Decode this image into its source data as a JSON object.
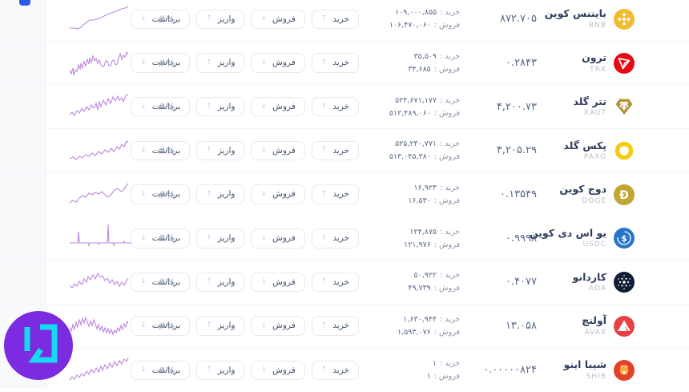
{
  "page": {
    "bg": "#ffffff",
    "spark_color": "#bd87e0",
    "logo": {
      "bg": "#7b2be0",
      "glyph": "#17d9f0"
    }
  },
  "table": {
    "percent_placeholder": "#%",
    "buy_label": "خرید :",
    "sell_label": "فروش :",
    "buttons": {
      "buy": "خرید",
      "sell": "فروش",
      "deposit": "واریز",
      "withdraw": "برداشت"
    },
    "icons": {
      "arrow_up": "↑",
      "arrow_down": "↓"
    },
    "rows": [
      {
        "name": "بایننس کوین",
        "ticker": "BNB",
        "price": "۸۷۲.۷۰۵",
        "buy": "۱۰۹,۰۰۰,۸۵۵",
        "sell": "۱۰۶,۴۷۰,۰۶۰",
        "icon": "bnb",
        "icon_colors": {
          "bg": "#F3BA2F",
          "fg": "#ffffff"
        },
        "spark": "1,31 7,31 11,32 15,30 18,27 22,24 26,21 30,21 34,20 38,19 44,16 50,13 56,11 62,9 66,7 70,6 74,4"
      },
      {
        "name": "ترون",
        "ticker": "TRX",
        "price": "۰.۲۸۴۳",
        "buy": "۳۵,۵۰۹",
        "sell": "۳۴,۶۸۵",
        "icon": "trx",
        "icon_colors": {
          "bg": "#e50914",
          "fg": "#ffffff"
        },
        "spark": "1,28 3,33 5,26 6,35 8,28 10,30 12,22 14,27 15,20 17,26 19,17 21,24 23,15 25,21 26,13 28,19 30,11 32,17 34,14 36,20 38,16 40,22 42,24 44,23 46,17 48,17 50,23 52,23 54,17 56,16 58,22 60,21 62,14 64,8 66,15 68,10 70,12 72,6 74,9"
      },
      {
        "name": "تتر گلد",
        "ticker": "XAUT",
        "price": "۴,۲۰۰.۷۳",
        "buy": "۵۲۴,۶۷۱,۱۷۷",
        "sell": "۵۱۲,۴۸۹,۰۶۰",
        "icon": "xaut",
        "icon_colors": {
          "bg": "#b59341",
          "fg": "#ffffff"
        },
        "spark": "1,30 4,27 7,31 10,25 13,28 16,22 19,26 22,20 25,24 28,18 31,22 34,16 36,24 38,14 40,20 43,12 46,18 49,10 52,16 55,8 58,13 61,7 63,12 66,9 68,14 71,6 74,5"
      },
      {
        "name": "پکس گلد",
        "ticker": "PAXG",
        "price": "۴,۲۰۵.۲۹",
        "buy": "۵۲۵,۲۴۰,۷۷۱",
        "sell": "۵۱۳,۰۴۵,۳۸۰",
        "icon": "paxg",
        "icon_colors": {
          "bg": "#ffffff",
          "fg": "#f2cd12"
        },
        "spark": "1,30 5,28 9,31 13,27 17,29 21,25 25,27 29,23 33,26 37,21 41,24 45,19 49,22 53,17 56,21 60,15 63,18 66,12 69,15 72,8 74,10"
      },
      {
        "name": "دوج کوین",
        "ticker": "DOGE",
        "price": "۰.۱۳۵۴۹",
        "buy": "۱۶,۹۲۳",
        "sell": "۱۶,۵۳۰",
        "icon": "doge",
        "icon_colors": {
          "bg": "#c2a634",
          "fg": "#ffffff"
        },
        "spark": "1,30 5,27 9,29 13,24 17,21 21,23 25,18 29,20 33,17 37,19 41,16 45,20 49,23 53,19 57,14 61,12 65,16 69,13 72,8 74,6"
      },
      {
        "name": "یو اس دی کوین",
        "ticker": "USDC",
        "price": "۰.۹۹۹۸",
        "buy": "۱۲۴,۸۷۵",
        "sell": "۱۲۱,۹۷۶",
        "icon": "usdc",
        "icon_colors": {
          "bg": "#2775ca",
          "fg": "#ffffff"
        },
        "spark": "1,26 11,26 12,12 13,26 24,26 25,29 26,26 36,26 37,28 38,26 48,26 49,3 50,26 55,26 56,29 57,26 68,26 69,24 70,26 78,26"
      },
      {
        "name": "کاردانو",
        "ticker": "ADA",
        "price": "۰.۴۰۷۷",
        "buy": "۵۰,۹۲۲",
        "sell": "۴۹,۷۳۹",
        "icon": "ada",
        "icon_colors": {
          "bg": "#101c33",
          "fg": "#ffffff"
        },
        "spark": "1,24 4,27 7,22 10,25 13,19 16,23 19,16 22,20 24,13 27,17 30,11 33,16 36,9 39,14 42,12 45,18 48,15 51,21 54,17 57,23 60,19 63,25 66,20 69,24 72,18 74,15"
      },
      {
        "name": "آولنچ",
        "ticker": "AVAX",
        "price": "۱۳.۰۵۸",
        "buy": "۱,۶۳۰,۹۴۴",
        "sell": "۱,۵۹۳,۰۷۶",
        "icon": "avax",
        "icon_colors": {
          "bg": "#e84142",
          "fg": "#ffffff"
        },
        "spark": "1,22 3,26 5,18 7,24 9,15 11,21 13,12 15,18 17,10 19,16 21,9 23,15 25,20 27,14 29,19 31,12 33,17 35,23 37,18 39,25 41,20 43,27 45,22 47,28 49,23 51,29 53,24 55,30 57,25 59,28 61,22 63,26 65,19 67,24 69,17 71,21 73,14 74,16"
      },
      {
        "name": "شیبا اینو",
        "ticker": "SHIB",
        "price": "۰.۰۰۰۰۰۸۲۴",
        "buy": "۱",
        "sell": "۱",
        "icon": "shib",
        "icon_colors": {
          "bg": "#e2422b",
          "fg": "#f7a83c"
        },
        "spark": "1,32 4,28 7,31 10,26 13,29 16,24 19,27 22,21 25,25 28,19 31,23 34,17 37,22 40,15 42,20 45,13 48,18 51,11 54,16 57,9 60,14 63,8 66,12 69,6 72,9 74,4"
      }
    ]
  }
}
